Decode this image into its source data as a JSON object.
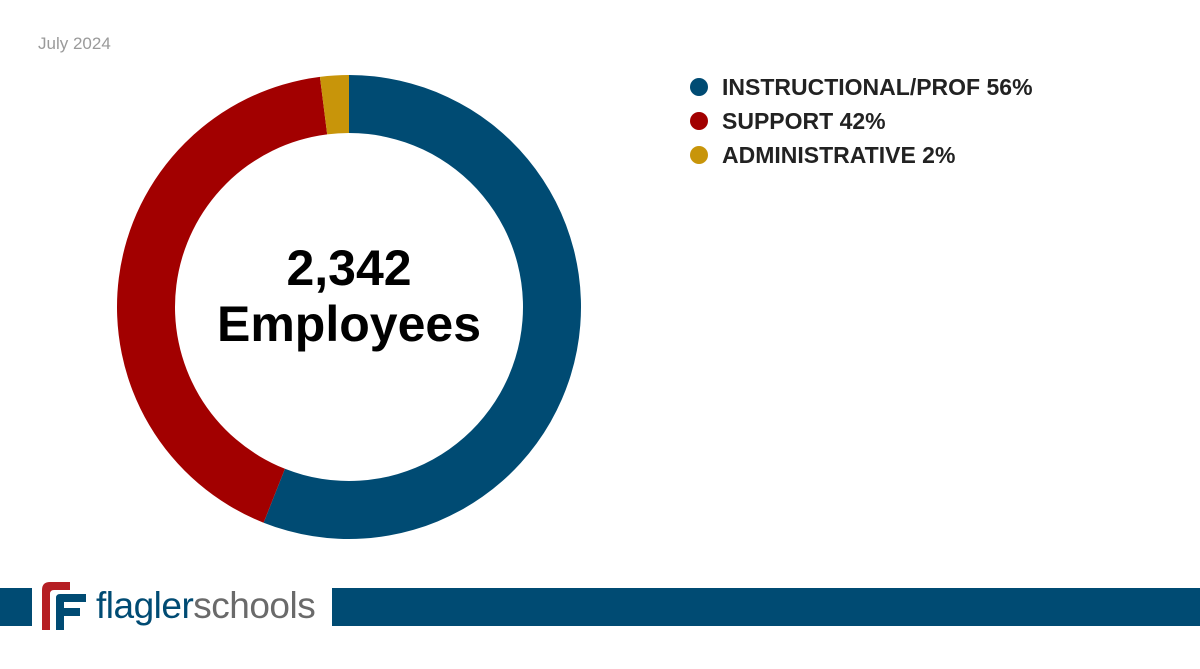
{
  "date": "July 2024",
  "center": {
    "number": "2,342",
    "label": "Employees"
  },
  "chart_data": {
    "type": "pie",
    "donut": true,
    "title": "",
    "categories": [
      "INSTRUCTIONAL/PROF",
      "SUPPORT",
      "ADMINISTRATIVE"
    ],
    "values": [
      56,
      42,
      2
    ],
    "unit": "%",
    "colors": [
      "#004b73",
      "#a20000",
      "#c8950a"
    ],
    "legend_labels": [
      "INSTRUCTIONAL/PROF 56%",
      "SUPPORT 42%",
      "ADMINISTRATIVE 2%"
    ],
    "legend_position": "top-right"
  },
  "brand": {
    "name_part1": "flagler",
    "name_part2": "schools",
    "color": "#004b73"
  }
}
